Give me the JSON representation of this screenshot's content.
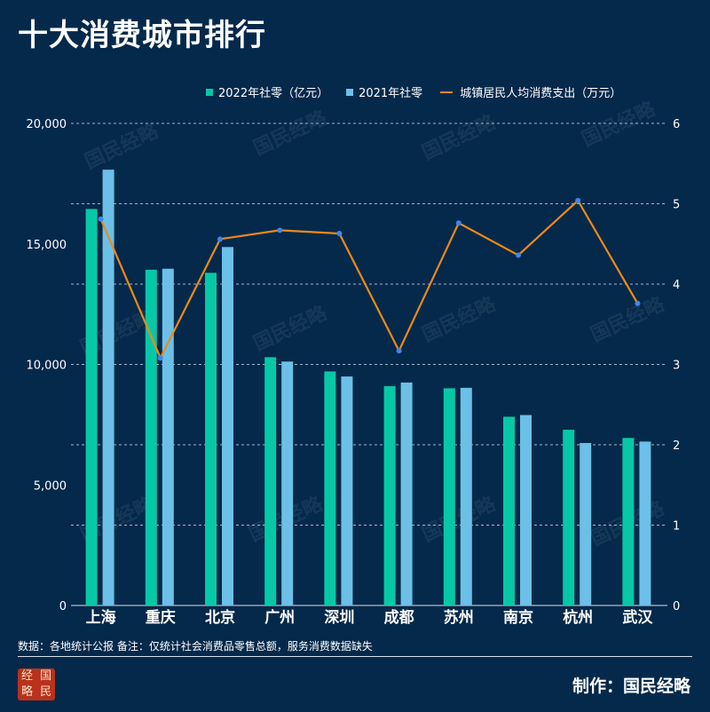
{
  "title": "十大消费城市排行",
  "legend": {
    "s2022": "2022年社零（亿元）",
    "s2021": "2021年社零",
    "line": "城镇居民人均消费支出（万元）"
  },
  "colors": {
    "background": "#05294b",
    "s2022": "#07c8a6",
    "s2021": "#6cc0e8",
    "line": "#ed8a19",
    "line_marker": "#3f87e6",
    "grid": "#b7c6d6"
  },
  "chart_data": {
    "type": "bar",
    "categories": [
      "上海",
      "重庆",
      "北京",
      "广州",
      "深圳",
      "成都",
      "苏州",
      "南京",
      "杭州",
      "武汉"
    ],
    "series": [
      {
        "name": "2022年社零（亿元）",
        "type": "bar",
        "axis": "left",
        "values": [
          16450,
          13930,
          13800,
          10300,
          9710,
          9100,
          9010,
          7830,
          7290,
          6950
        ]
      },
      {
        "name": "2021年社零",
        "type": "bar",
        "axis": "left",
        "values": [
          18080,
          13970,
          14870,
          10120,
          9500,
          9250,
          9030,
          7900,
          6740,
          6800
        ]
      },
      {
        "name": "城镇居民人均消费支出（万元）",
        "type": "line",
        "axis": "right",
        "values": [
          4.81,
          3.08,
          4.56,
          4.67,
          4.63,
          3.17,
          4.76,
          4.36,
          5.04,
          3.76
        ]
      }
    ],
    "y_left": {
      "min": 0,
      "max": 20000,
      "ticks": [
        0,
        5000,
        10000,
        15000,
        20000
      ],
      "tick_labels": [
        "0",
        "5,000",
        "10,000",
        "15,000",
        "20,000"
      ]
    },
    "y_right": {
      "min": 0,
      "max": 6,
      "ticks": [
        0,
        1,
        2,
        3,
        4,
        5,
        6
      ],
      "tick_labels": [
        "0",
        "1",
        "2",
        "3",
        "4",
        "5",
        "6"
      ]
    },
    "grid": true,
    "legend_position": "top-right"
  },
  "watermark": "国民经略",
  "source_note": "数据：各地统计公报  备注：仅统计社会消费品零售总额，服务消费数据缺失",
  "credit": "制作：国民经略",
  "logo_chars": [
    "经",
    "国",
    "略",
    "民"
  ]
}
